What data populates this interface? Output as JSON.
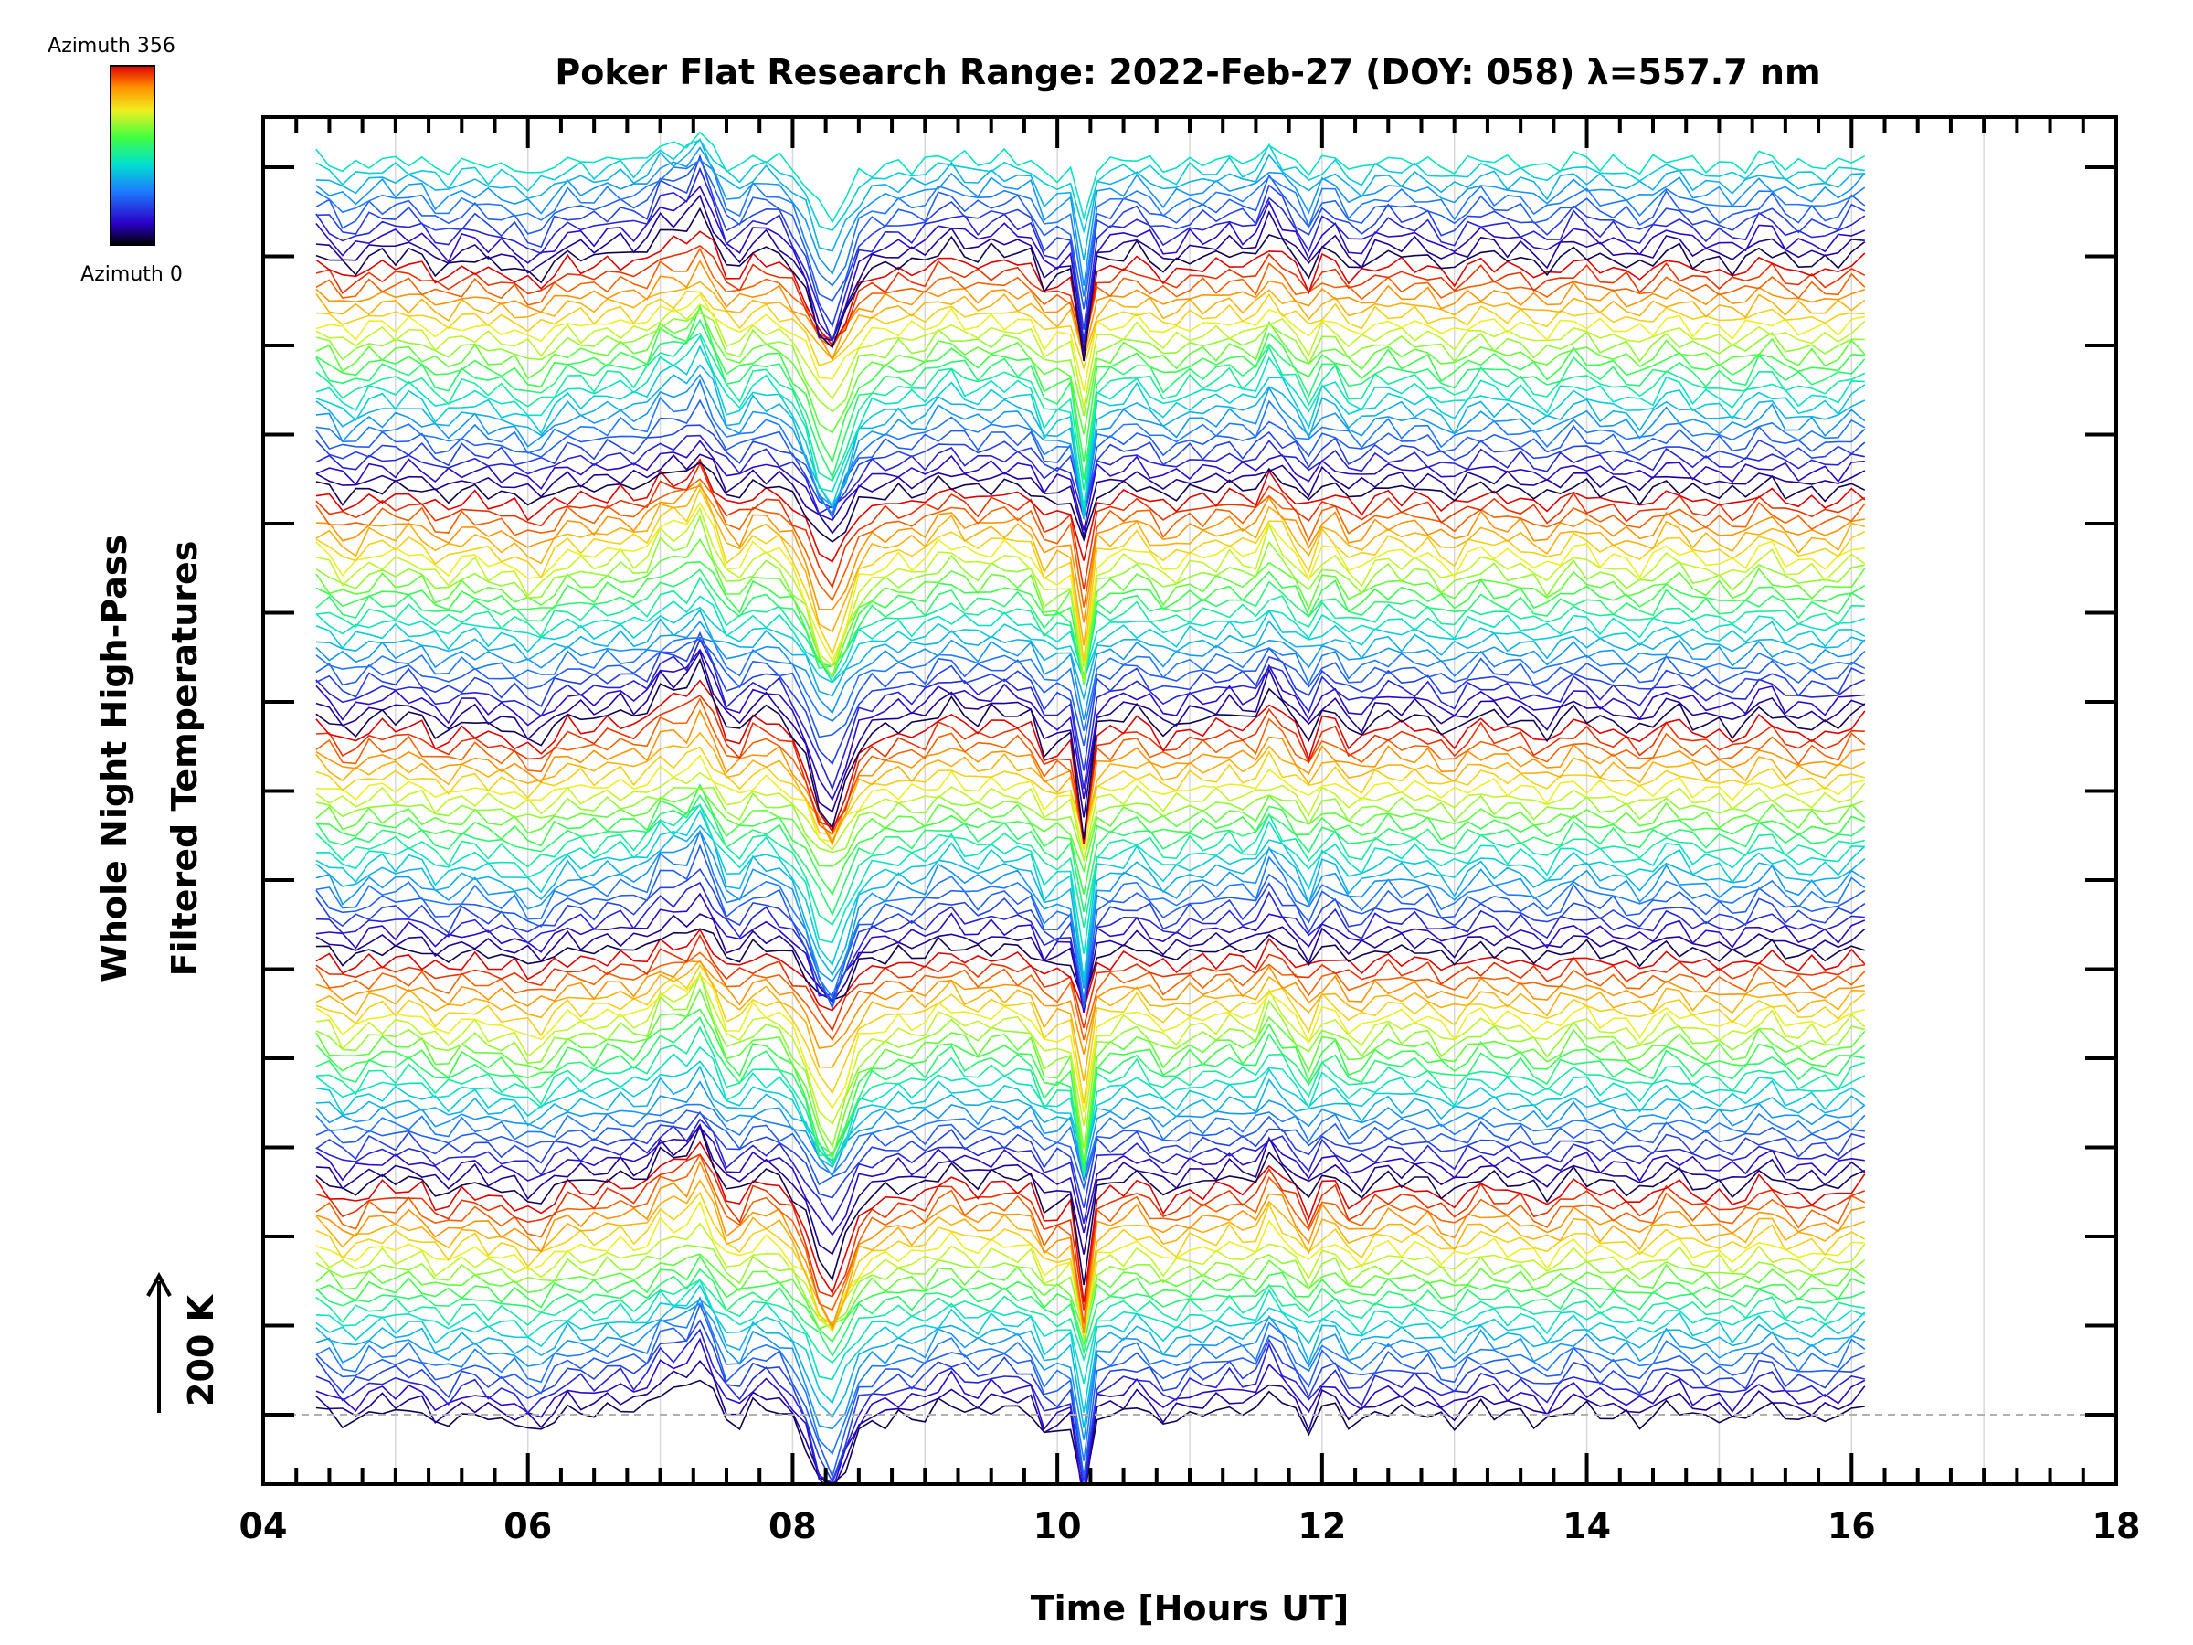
{
  "chart_data": {
    "type": "line",
    "title": "Poker Flat Research Range: 2022-Feb-27 (DOY: 058) λ=557.7 nm",
    "xlabel": "Time [Hours UT]",
    "ylabel_line1": "Whole Night High-Pass",
    "ylabel_line2": "Filtered Temperatures",
    "scale_label": "200 K",
    "colorbar": {
      "top_label": "Azimuth 356",
      "bottom_label": "Azimuth 0"
    },
    "xlim": [
      4,
      18
    ],
    "x_ticks": [
      "04",
      "06",
      "08",
      "10",
      "12",
      "14",
      "16",
      "18"
    ],
    "grid": true,
    "description": "Stacked traces of high-pass filtered temperature vs time, one per azimuth (0-356), colored by azimuth",
    "x_start": 4.4,
    "x_end": 16.1,
    "num_traces": 131,
    "features": [
      {
        "time": 7.3,
        "kind": "peak"
      },
      {
        "time": 8.3,
        "kind": "dip"
      },
      {
        "time": 9.9,
        "kind": "dip"
      },
      {
        "time": 10.2,
        "kind": "dip"
      },
      {
        "time": 11.6,
        "kind": "peak"
      }
    ]
  }
}
